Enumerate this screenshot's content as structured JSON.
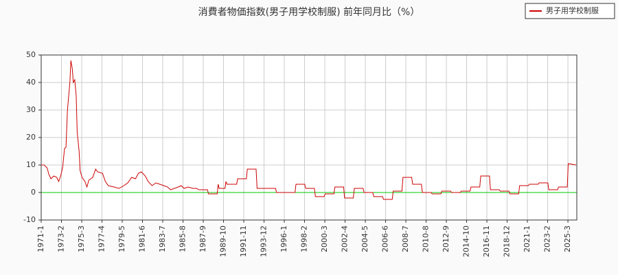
{
  "chart_data": {
    "type": "line",
    "title": "消費者物価指数(男子用学校制服) 前年同月比（%）",
    "x": [
      1971.0,
      1971.3,
      1971.6,
      1971.8,
      1972.0,
      1972.3,
      1972.6,
      1972.8,
      1973.0,
      1973.2,
      1973.4,
      1973.55,
      1973.7,
      1973.95,
      1974.05,
      1974.2,
      1974.3,
      1974.45,
      1974.6,
      1974.7,
      1974.9,
      1975.0,
      1975.2,
      1975.5,
      1975.7,
      1975.9,
      1976.3,
      1976.6,
      1976.8,
      1977.3,
      1977.6,
      1977.9,
      1978.5,
      1979.0,
      1979.5,
      1979.9,
      1980.3,
      1980.7,
      1981.0,
      1981.3,
      1981.7,
      1982.0,
      1982.4,
      1982.8,
      1983.2,
      1983.6,
      1984.0,
      1984.3,
      1984.7,
      1985.1,
      1985.4,
      1985.7,
      1986.1,
      1986.6,
      1987.0,
      1987.2,
      1988.1,
      1988.2,
      1989.1,
      1989.2,
      1989.3,
      1989.9,
      1990.0,
      1990.1,
      1991.1,
      1991.2,
      1992.1,
      1992.2,
      1993.1,
      1993.2,
      1994.1,
      1994.2,
      1995.1,
      1995.2,
      1996.1,
      1996.2,
      1997.1,
      1997.2,
      1998.1,
      1998.2,
      1999.1,
      1999.2,
      2000.1,
      2000.2,
      2001.1,
      2001.2,
      2002.1,
      2002.2,
      2003.1,
      2003.2,
      2004.1,
      2004.2,
      2005.1,
      2005.2,
      2006.1,
      2006.2,
      2007.1,
      2007.2,
      2008.1,
      2008.2,
      2009.1,
      2009.2,
      2010.1,
      2010.2,
      2011.1,
      2011.2,
      2012.1,
      2012.2,
      2013.1,
      2013.2,
      2014.1,
      2014.2,
      2015.1,
      2015.2,
      2016.1,
      2016.2,
      2017.1,
      2017.2,
      2018.1,
      2018.2,
      2019.1,
      2019.2,
      2020.1,
      2020.2,
      2021.1,
      2021.2,
      2022.1,
      2022.2,
      2023.1,
      2023.2,
      2024.1,
      2024.2,
      2025.1,
      2025.2,
      2026.0
    ],
    "series": [
      {
        "name": "男子用学校制服",
        "color": "#cc0000",
        "values": [
          10,
          10,
          9,
          6.5,
          5,
          6,
          5.5,
          4,
          6,
          9,
          16,
          16.5,
          30,
          40,
          48,
          45,
          40,
          41,
          35,
          22,
          15,
          8,
          5.5,
          4,
          2,
          4.5,
          5.5,
          8.5,
          7.5,
          7,
          4,
          2.5,
          2,
          1.5,
          2.5,
          3.5,
          5.5,
          5,
          7,
          7.5,
          6,
          4,
          2.5,
          3.5,
          3,
          2.5,
          2,
          1,
          1.5,
          2,
          2.5,
          1.5,
          2,
          1.5,
          1.5,
          1,
          1,
          -0.5,
          -0.5,
          3,
          1.5,
          1.5,
          4,
          3,
          3,
          5,
          5,
          8.5,
          8.5,
          1.5,
          1.5,
          1.5,
          1.5,
          0,
          0,
          0,
          0,
          3,
          3,
          1.5,
          1.5,
          -1.5,
          -1.5,
          -0.5,
          -0.5,
          2,
          2,
          -2,
          -2,
          1.5,
          1.5,
          0,
          0,
          -1.5,
          -1.5,
          -2.5,
          -2.5,
          0.5,
          0.5,
          5.5,
          5.5,
          3,
          3,
          0,
          0,
          -0.5,
          -0.5,
          0.5,
          0.5,
          0,
          0,
          0.5,
          0.5,
          2,
          2,
          6,
          6,
          1,
          1,
          0.5,
          0.5,
          -0.5,
          -0.5,
          2.5,
          2.5,
          3,
          3,
          3.5,
          3.5,
          1,
          1,
          2,
          2,
          10.5,
          10
        ]
      }
    ],
    "xlim": [
      1971.0,
      2026.08
    ],
    "xticks": [
      {
        "value": 1971.0,
        "label": "1971-1"
      },
      {
        "value": 1973.083,
        "label": "1973-2"
      },
      {
        "value": 1975.167,
        "label": "1975-3"
      },
      {
        "value": 1977.25,
        "label": "1977-4"
      },
      {
        "value": 1979.333,
        "label": "1979-5"
      },
      {
        "value": 1981.417,
        "label": "1981-6"
      },
      {
        "value": 1983.5,
        "label": "1983-7"
      },
      {
        "value": 1985.583,
        "label": "1985-8"
      },
      {
        "value": 1987.667,
        "label": "1987-9"
      },
      {
        "value": 1989.75,
        "label": "1989-10"
      },
      {
        "value": 1991.833,
        "label": "1991-11"
      },
      {
        "value": 1993.917,
        "label": "1993-12"
      },
      {
        "value": 1996.0,
        "label": "1996-1"
      },
      {
        "value": 1998.083,
        "label": "1998-2"
      },
      {
        "value": 2000.167,
        "label": "2000-3"
      },
      {
        "value": 2002.25,
        "label": "2002-4"
      },
      {
        "value": 2004.333,
        "label": "2004-5"
      },
      {
        "value": 2006.417,
        "label": "2006-6"
      },
      {
        "value": 2008.5,
        "label": "2008-7"
      },
      {
        "value": 2010.583,
        "label": "2010-8"
      },
      {
        "value": 2012.667,
        "label": "2012-9"
      },
      {
        "value": 2014.75,
        "label": "2014-10"
      },
      {
        "value": 2016.833,
        "label": "2016-11"
      },
      {
        "value": 2018.917,
        "label": "2018-12"
      },
      {
        "value": 2021.0,
        "label": "2021-1"
      },
      {
        "value": 2023.083,
        "label": "2023-2"
      },
      {
        "value": 2025.167,
        "label": "2025-3"
      }
    ],
    "ylim": [
      -10,
      50
    ],
    "yticks": [
      -10,
      0,
      10,
      20,
      30,
      40,
      50
    ],
    "grid": true,
    "zero_line_color": "#00cc00",
    "legend": "top-right"
  }
}
